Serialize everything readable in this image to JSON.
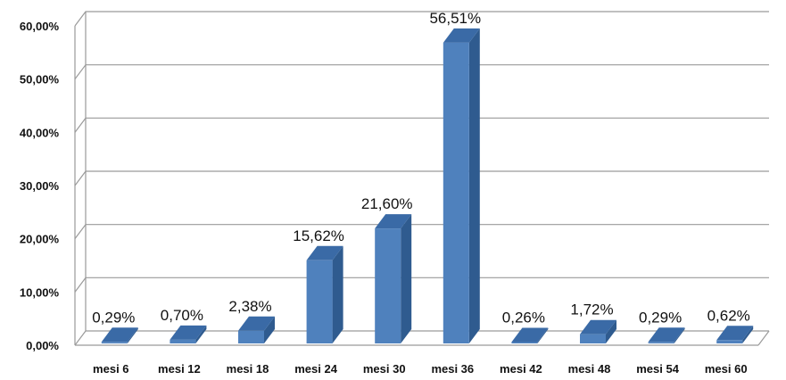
{
  "chart_data": {
    "type": "bar",
    "categories": [
      "mesi 6",
      "mesi 12",
      "mesi 18",
      "mesi 24",
      "mesi 30",
      "mesi 36",
      "mesi 42",
      "mesi 48",
      "mesi 54",
      "mesi 60"
    ],
    "values": [
      0.29,
      0.7,
      2.38,
      15.62,
      21.6,
      56.51,
      0.26,
      1.72,
      0.29,
      0.62
    ],
    "value_labels": [
      "0,29%",
      "0,70%",
      "2,38%",
      "15,62%",
      "21,60%",
      "56,51%",
      "0,26%",
      "1,72%",
      "0,29%",
      "0,62%"
    ],
    "y_ticks": [
      "0,00%",
      "10,00%",
      "20,00%",
      "30,00%",
      "40,00%",
      "50,00%",
      "60,00%"
    ],
    "ylim": [
      0,
      60
    ],
    "grid": true,
    "style": "3d",
    "colors": {
      "bar_front": "#4f81bd",
      "bar_side": "#2f5b8f",
      "bar_top": "#3a6aa6",
      "grid": "#9a9a9a"
    }
  }
}
